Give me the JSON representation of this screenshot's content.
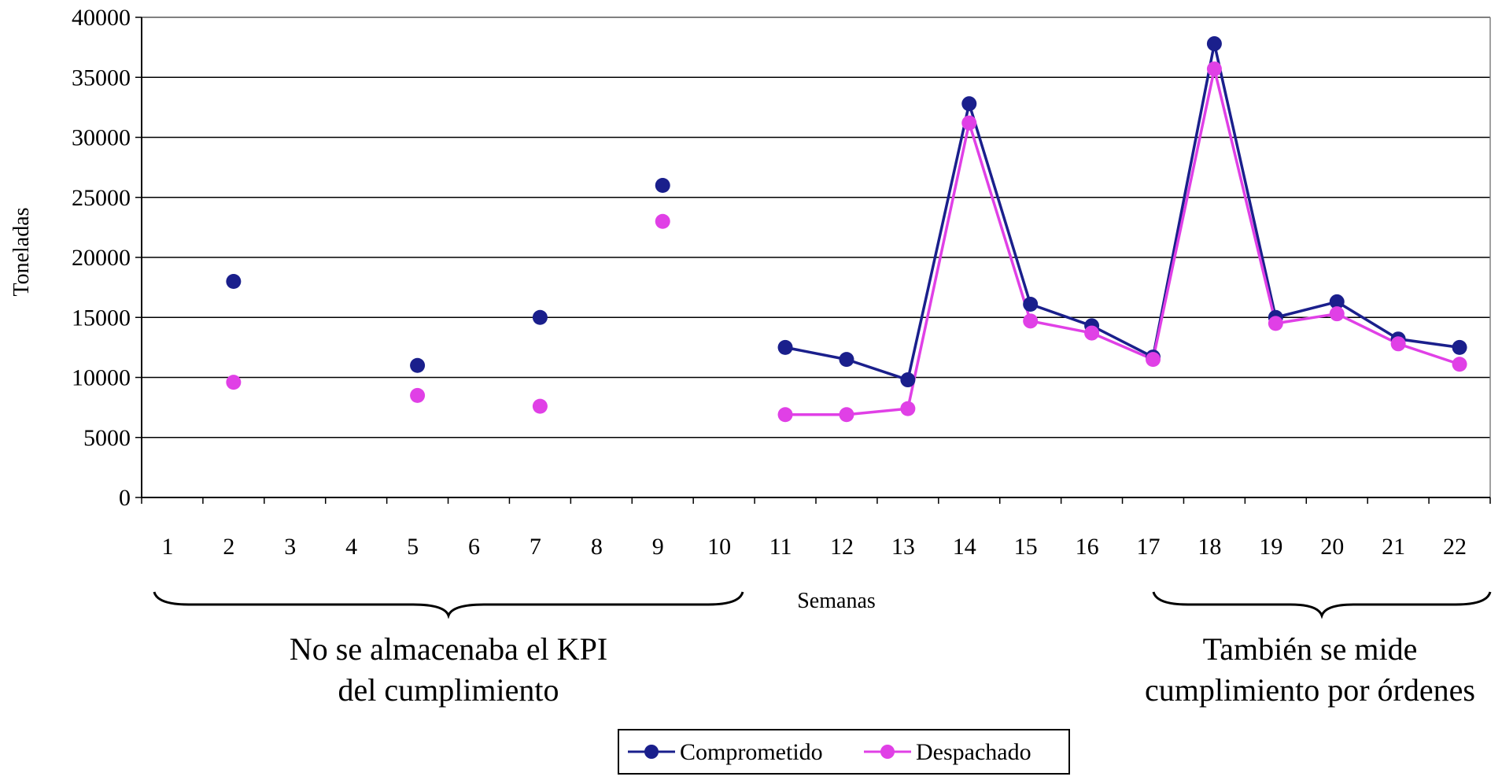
{
  "chart_data": {
    "type": "line",
    "xlabel": "Semanas",
    "ylabel": "Toneladas",
    "ylim": [
      0,
      40000
    ],
    "yticks": [
      0,
      5000,
      10000,
      15000,
      20000,
      25000,
      30000,
      35000,
      40000
    ],
    "categories": [
      "1",
      "2",
      "3",
      "4",
      "5",
      "6",
      "7",
      "8",
      "9",
      "10",
      "11",
      "12",
      "13",
      "14",
      "15",
      "16",
      "17",
      "18",
      "19",
      "20",
      "21",
      "22"
    ],
    "grid": "horizontal",
    "legend_position": "bottom-center",
    "series": [
      {
        "name": "Comprometido",
        "color": "#1a1f8c",
        "values": [
          null,
          18000,
          null,
          null,
          11000,
          null,
          15000,
          null,
          26000,
          null,
          12500,
          11500,
          9800,
          32800,
          16100,
          14300,
          11700,
          37800,
          15000,
          16300,
          13200,
          12500
        ],
        "connected_from_index": 10
      },
      {
        "name": "Despachado",
        "color": "#e040e6",
        "values": [
          null,
          9600,
          null,
          null,
          8500,
          null,
          7600,
          null,
          23000,
          null,
          6900,
          6900,
          7400,
          31200,
          14700,
          13700,
          11500,
          35700,
          14500,
          15300,
          12800,
          11100
        ],
        "connected_from_index": 10
      }
    ],
    "annotations": [
      {
        "text_lines": [
          "No se almacenaba el KPI",
          "del cumplimiento"
        ],
        "brace_from": "1",
        "brace_to": "10"
      },
      {
        "text_lines": [
          "También se mide",
          "cumplimiento por órdenes"
        ],
        "brace_from": "17",
        "brace_to": "22"
      }
    ]
  }
}
